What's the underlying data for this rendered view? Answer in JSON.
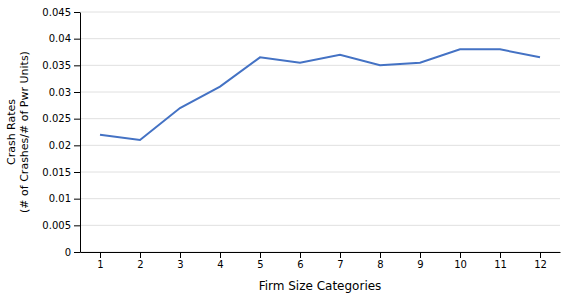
{
  "chart_data": {
    "type": "line",
    "xlabel": "Firm Size Categories",
    "ylabel": "Crash Rates\n(# of Crashes/# of Pwr Units)",
    "x": [
      1,
      2,
      3,
      4,
      5,
      6,
      7,
      8,
      9,
      10,
      11,
      12
    ],
    "values": [
      0.022,
      0.021,
      0.027,
      0.031,
      0.0365,
      0.0355,
      0.037,
      0.035,
      0.0355,
      0.038,
      0.038,
      0.0365
    ],
    "color": "#4472C4",
    "xlim": [
      0.5,
      12.5
    ],
    "xticks": [
      1,
      2,
      3,
      4,
      5,
      6,
      7,
      8,
      9,
      10,
      11,
      12
    ],
    "ylim": [
      0,
      0.045
    ],
    "yticks": [
      0,
      0.005,
      0.01,
      0.015,
      0.02,
      0.025,
      0.03,
      0.035,
      0.04,
      0.045
    ],
    "grid": true
  }
}
